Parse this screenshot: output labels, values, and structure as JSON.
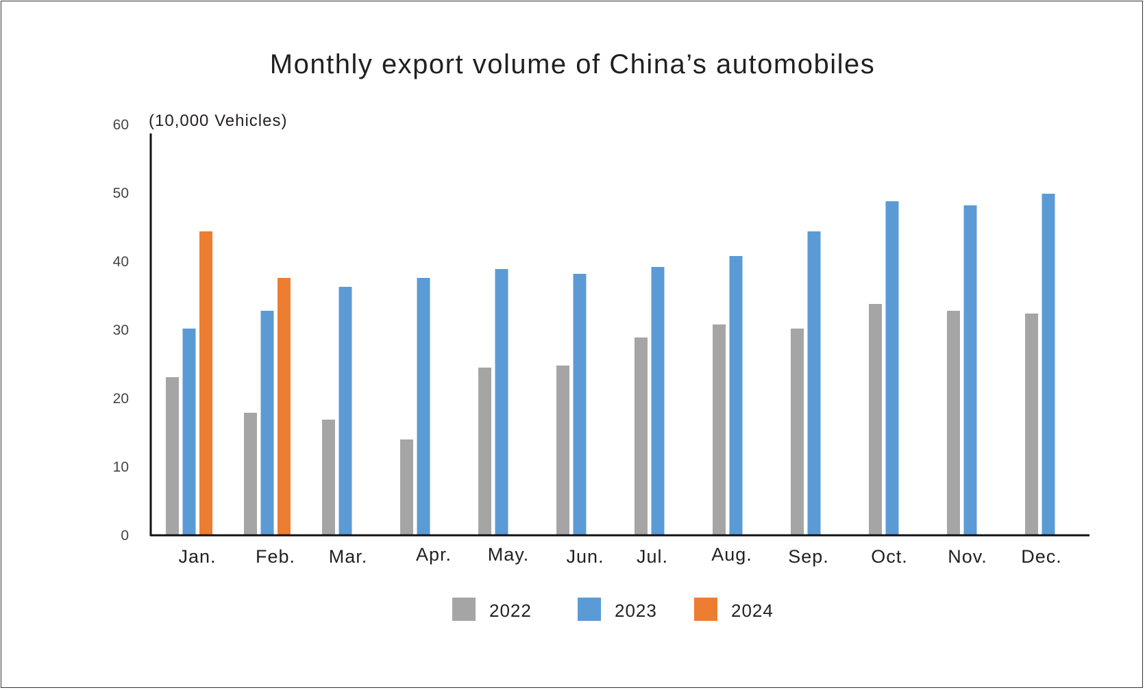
{
  "chart_data": {
    "type": "bar",
    "title": "Monthly export volume of China’s automobiles",
    "ylabel": "(10,000 Vehicles)",
    "xlabel": "",
    "ylim": [
      0,
      60
    ],
    "yticks": [
      0,
      10,
      20,
      30,
      40,
      50,
      60
    ],
    "grid": false,
    "legend_position": "bottom",
    "categories": [
      "Jan.",
      "Feb.",
      "Mar.",
      "Apr.",
      "May.",
      "Jun.",
      "Jul.",
      "Aug.",
      "Sep.",
      "Oct.",
      "Nov.",
      "Dec."
    ],
    "series": [
      {
        "name": "2022",
        "color": "#a5a5a5",
        "values": [
          23.0,
          17.8,
          16.8,
          13.9,
          24.4,
          24.7,
          28.8,
          30.7,
          30.1,
          33.7,
          32.7,
          32.3
        ]
      },
      {
        "name": "2023",
        "color": "#5b9bd5",
        "values": [
          30.1,
          32.7,
          36.2,
          37.5,
          38.8,
          38.1,
          39.1,
          40.7,
          44.3,
          48.7,
          48.1,
          49.8
        ]
      },
      {
        "name": "2024",
        "color": "#ed7d31",
        "values": [
          44.3,
          37.5,
          null,
          null,
          null,
          null,
          null,
          null,
          null,
          null,
          null,
          null
        ]
      }
    ]
  }
}
